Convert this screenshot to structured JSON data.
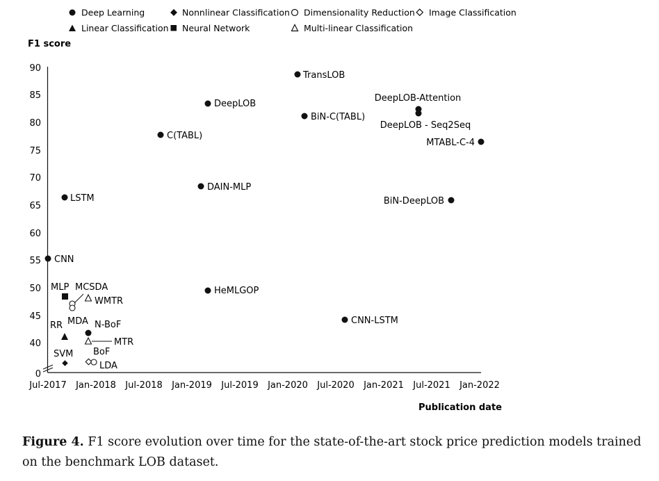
{
  "caption": {
    "label": "Figure 4.",
    "text": " F1 score evolution over time for the state-of-the-art stock price prediction models trained on the benchmark LOB dataset."
  },
  "chart_data": {
    "type": "scatter",
    "ylabel": "F1 score",
    "xlabel": "Publication date",
    "y_ticks": [
      90,
      85,
      80,
      75,
      70,
      65,
      60,
      55,
      50,
      45,
      40,
      0
    ],
    "x_ticks": [
      "Jul-2017",
      "Jan-2018",
      "Jul-2018",
      "Jan-2019",
      "Jul-2019",
      "Jan-2020",
      "Jul-2020",
      "Jan-2021",
      "Jul-2021",
      "Jan-2022"
    ],
    "axis_break": true,
    "legend_position": "top",
    "legend": [
      {
        "name": "Deep Learning",
        "marker": "filled-circle"
      },
      {
        "name": "Nonnlinear Classification",
        "marker": "filled-diamond"
      },
      {
        "name": "Dimensionality Reduction",
        "marker": "open-circle"
      },
      {
        "name": "Image Classification",
        "marker": "open-diamond"
      },
      {
        "name": "Linear Classification",
        "marker": "filled-triangle"
      },
      {
        "name": "Neural Network",
        "marker": "filled-square"
      },
      {
        "name": "Multi-linear Classification",
        "marker": "open-triangle"
      }
    ],
    "points": [
      {
        "label": "CNN",
        "category": "Deep Learning",
        "x": "Jul-2017",
        "y": 55
      },
      {
        "label": "LSTM",
        "category": "Deep Learning",
        "x": "Aug-2017",
        "y": 66
      },
      {
        "label": "C(TABL)",
        "category": "Deep Learning",
        "x": "Dec-2018",
        "y": 77.5
      },
      {
        "label": "DeepLOB",
        "category": "Deep Learning",
        "x": "Mar-2019",
        "y": 83
      },
      {
        "label": "DAIN-MLP",
        "category": "Deep Learning",
        "x": "Feb-2019",
        "y": 68
      },
      {
        "label": "HeMLGOP",
        "category": "Deep Learning",
        "x": "Mar-2019",
        "y": 49.5
      },
      {
        "label": "TransLOB",
        "category": "Deep Learning",
        "x": "Feb-2020",
        "y": 88
      },
      {
        "label": "BiN-C(TABL)",
        "category": "Deep Learning",
        "x": "Mar-2020",
        "y": 81
      },
      {
        "label": "CNN-LSTM",
        "category": "Deep Learning",
        "x": "Sep-2020",
        "y": 44
      },
      {
        "label": "DeepLOB-Attention",
        "category": "Deep Learning",
        "x": "Jun-2021",
        "y": 82.5
      },
      {
        "label": "DeepLOB - Seq2Seq",
        "category": "Deep Learning",
        "x": "Jun-2021",
        "y": 81.5
      },
      {
        "label": "MTABL-C-4",
        "category": "Deep Learning",
        "x": "Jan-2022",
        "y": 76
      },
      {
        "label": "BiN-DeepLOB",
        "category": "Deep Learning",
        "x": "Oct-2021",
        "y": 65.5
      },
      {
        "label": "N-BoF",
        "category": "Deep Learning",
        "x": "Dec-2017",
        "y": 41.5
      },
      {
        "label": "MLP",
        "category": "Neural Network",
        "x": "Aug-2017",
        "y": 48
      },
      {
        "label": "MCSDA",
        "category": "Dimensionality Reduction",
        "x": "Oct-2017",
        "y": 47
      },
      {
        "label": "MDA",
        "category": "Dimensionality Reduction",
        "x": "Oct-2017",
        "y": 46.2
      },
      {
        "label": "WMTR",
        "category": "Multi-linear Classification",
        "x": "Dec-2017",
        "y": 48
      },
      {
        "label": "MTR",
        "category": "Multi-linear Classification",
        "x": "Dec-2017",
        "y": 40
      },
      {
        "label": "RR",
        "category": "Linear Classification",
        "x": "Aug-2017",
        "y": 41
      },
      {
        "label": "SVM",
        "category": "Nonnlinear Classification",
        "x": "Aug-2017",
        "y": 36
      },
      {
        "label": "BoF",
        "category": "Image Classification",
        "x": "Dec-2017",
        "y": 36.5
      },
      {
        "label": "LDA",
        "category": "Dimensionality Reduction",
        "x": "Dec-2017",
        "y": 36.5
      }
    ]
  }
}
